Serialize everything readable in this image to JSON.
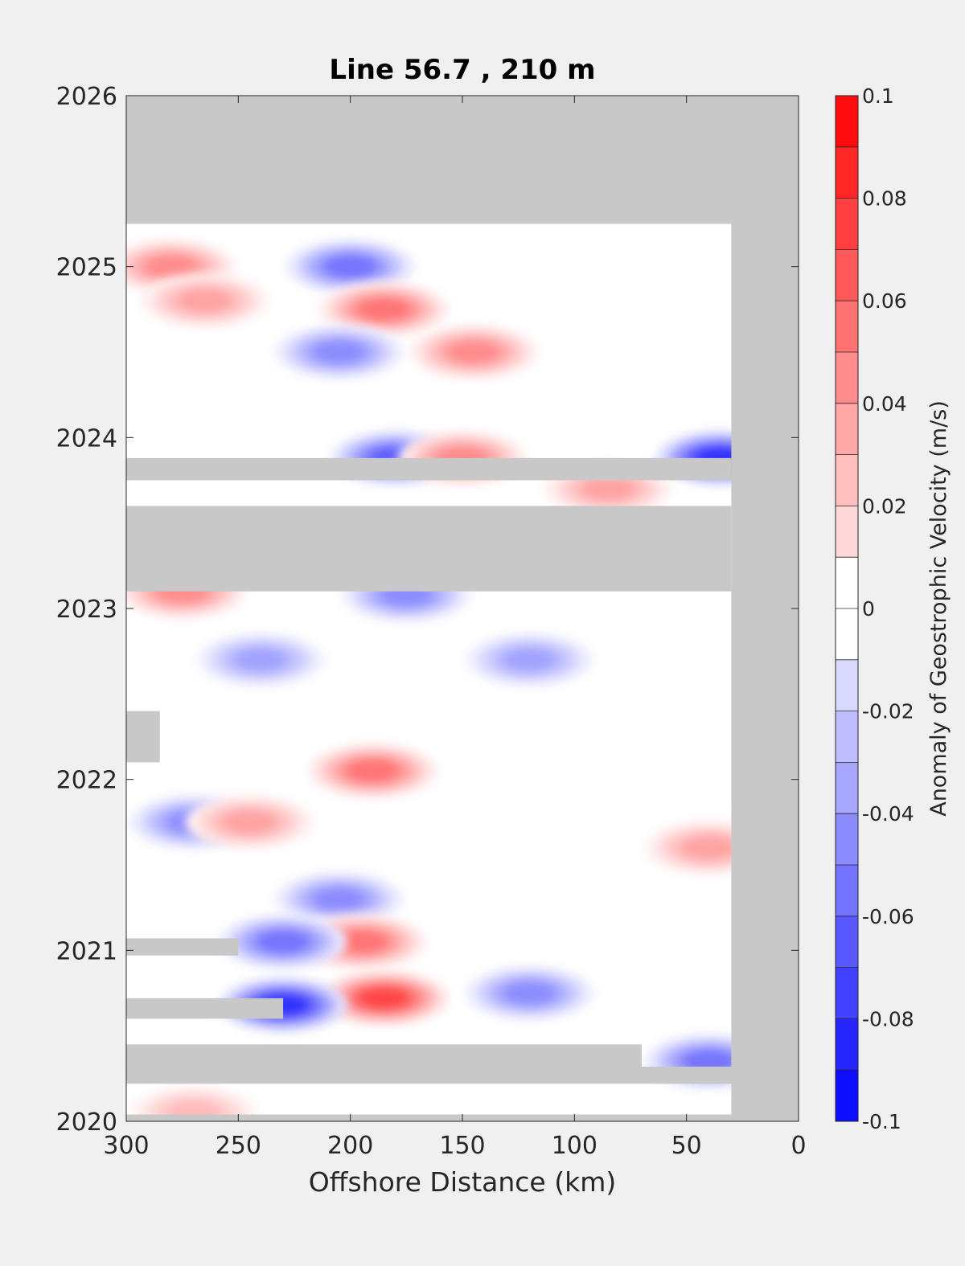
{
  "chart_data": {
    "type": "heatmap",
    "title": "Line 56.7 , 210 m",
    "xlabel": "Offshore Distance (km)",
    "ylabel": "",
    "x_reversed": true,
    "xlim": [
      0,
      300
    ],
    "ylim": [
      2020,
      2026
    ],
    "xticks": [
      300,
      250,
      200,
      150,
      100,
      50,
      0
    ],
    "yticks": [
      2026,
      2025,
      2024,
      2023,
      2022,
      2021,
      2020
    ],
    "colorbar": {
      "label": "Anomaly of Geostrophic Velocity (m/s)",
      "range": [
        -0.1,
        0.1
      ],
      "ticks": [
        0.1,
        0.08,
        0.06,
        0.04,
        0.02,
        0,
        -0.02,
        -0.04,
        -0.06,
        -0.08,
        -0.1
      ],
      "tick_labels": [
        "0.1",
        "0.08",
        "0.06",
        "0.04",
        "0.02",
        "0",
        "-0.02",
        "-0.04",
        "-0.06",
        "-0.08",
        "-0.1"
      ],
      "levels": 20,
      "colormap": "blue-white-red"
    },
    "nodata_color": "#c8c8c8",
    "nodata_regions": [
      {
        "x": [
          0,
          300
        ],
        "y": [
          2025.25,
          2026
        ]
      },
      {
        "x": [
          0,
          30
        ],
        "y": [
          2020,
          2026
        ]
      },
      {
        "x": [
          30,
          300
        ],
        "y": [
          2023.1,
          2023.6
        ]
      },
      {
        "x": [
          30,
          300
        ],
        "y": [
          2023.75,
          2023.88
        ]
      },
      {
        "x": [
          30,
          300
        ],
        "y": [
          2020.22,
          2020.32
        ]
      },
      {
        "x": [
          70,
          300
        ],
        "y": [
          2020.32,
          2020.45
        ]
      },
      {
        "x": [
          230,
          300
        ],
        "y": [
          2020.6,
          2020.72
        ]
      },
      {
        "x": [
          250,
          300
        ],
        "y": [
          2020.97,
          2021.07
        ]
      },
      {
        "x": [
          285,
          300
        ],
        "y": [
          2022.1,
          2022.4
        ]
      },
      {
        "x": [
          0,
          300
        ],
        "y": [
          2020,
          2020.04
        ]
      }
    ],
    "anomalies": [
      {
        "x": 200,
        "y": 2025.0,
        "value": -0.06
      },
      {
        "x": 280,
        "y": 2025.0,
        "value": 0.05
      },
      {
        "x": 185,
        "y": 2024.75,
        "value": 0.06
      },
      {
        "x": 265,
        "y": 2024.8,
        "value": 0.04
      },
      {
        "x": 145,
        "y": 2024.5,
        "value": 0.05
      },
      {
        "x": 205,
        "y": 2024.5,
        "value": -0.05
      },
      {
        "x": 180,
        "y": 2023.88,
        "value": -0.07
      },
      {
        "x": 150,
        "y": 2023.88,
        "value": 0.05
      },
      {
        "x": 35,
        "y": 2023.88,
        "value": -0.09
      },
      {
        "x": 85,
        "y": 2023.7,
        "value": 0.04
      },
      {
        "x": 275,
        "y": 2023.1,
        "value": 0.05
      },
      {
        "x": 175,
        "y": 2023.08,
        "value": -0.05
      },
      {
        "x": 240,
        "y": 2022.7,
        "value": -0.04
      },
      {
        "x": 120,
        "y": 2022.7,
        "value": -0.04
      },
      {
        "x": 190,
        "y": 2022.05,
        "value": 0.06
      },
      {
        "x": 270,
        "y": 2021.75,
        "value": -0.05
      },
      {
        "x": 245,
        "y": 2021.75,
        "value": 0.04
      },
      {
        "x": 205,
        "y": 2021.3,
        "value": -0.05
      },
      {
        "x": 195,
        "y": 2021.05,
        "value": 0.06
      },
      {
        "x": 230,
        "y": 2021.05,
        "value": -0.06
      },
      {
        "x": 185,
        "y": 2020.72,
        "value": 0.08
      },
      {
        "x": 230,
        "y": 2020.68,
        "value": -0.09
      },
      {
        "x": 120,
        "y": 2020.75,
        "value": -0.05
      },
      {
        "x": 40,
        "y": 2020.35,
        "value": -0.06
      },
      {
        "x": 270,
        "y": 2020.05,
        "value": 0.03
      },
      {
        "x": 40,
        "y": 2021.6,
        "value": 0.04
      }
    ]
  }
}
